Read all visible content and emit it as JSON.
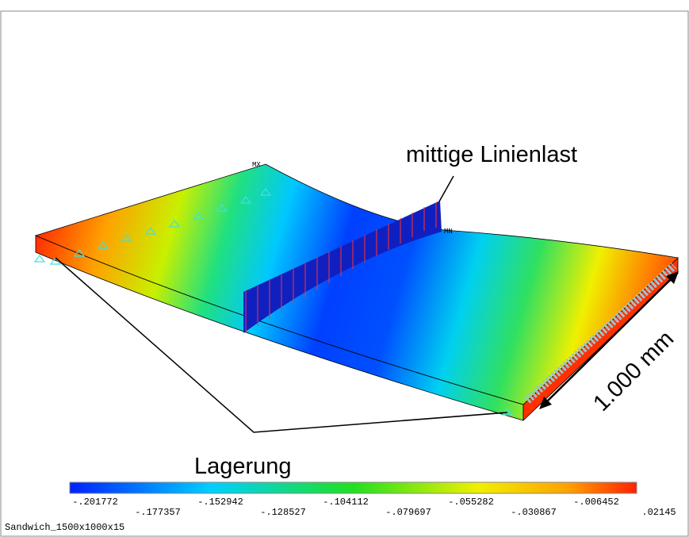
{
  "model_labels": {
    "max": "MX",
    "min": "MN"
  },
  "annotations": {
    "load": "mittige Linienlast",
    "width": "1.000 mm",
    "support": "Lagerung"
  },
  "legend": {
    "labels": [
      "-.201772",
      "-.177357",
      "-.152942",
      "-.128527",
      "-.104112",
      "-.079697",
      "-.055282",
      "-.030867",
      "-.006452",
      ".02145"
    ]
  },
  "footer": "Sandwich_1500x1000x15"
}
